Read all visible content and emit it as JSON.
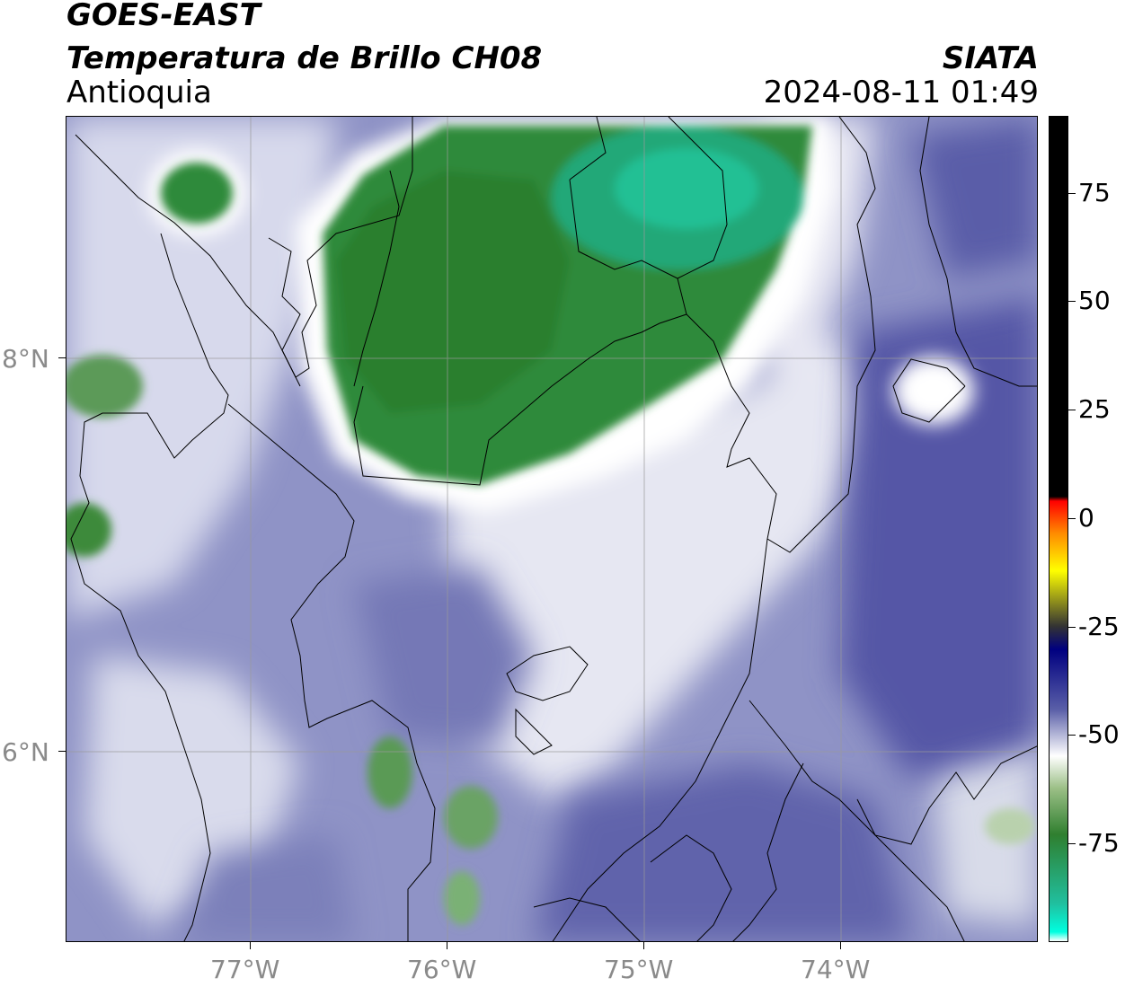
{
  "header": {
    "satellite": "GOES-EAST",
    "product": "Temperatura de Brillo CH08",
    "region": "Antioquia",
    "agency": "SIATA",
    "datetime": "2024-08-11 01:49"
  },
  "map": {
    "lon_labels": [
      "77°W",
      "76°W",
      "75°W",
      "74°W"
    ],
    "lat_labels": [
      "8°N",
      "6°N"
    ]
  },
  "colorbar": {
    "ticks": [
      "75",
      "50",
      "25",
      "0",
      "-25",
      "-50",
      "-75"
    ],
    "stops": [
      {
        "value": 90,
        "color": "#000000"
      },
      {
        "value": 8,
        "color": "#000000"
      },
      {
        "value": 7,
        "color": "#ff0000"
      },
      {
        "value": 0,
        "color": "#ff8c00"
      },
      {
        "value": -8,
        "color": "#ffff00"
      },
      {
        "value": -20,
        "color": "#333333"
      },
      {
        "value": -25,
        "color": "#000080"
      },
      {
        "value": -38,
        "color": "#5a5fa8"
      },
      {
        "value": -48,
        "color": "#ffffff"
      },
      {
        "value": -55,
        "color": "#9bbf86"
      },
      {
        "value": -65,
        "color": "#2f7f2f"
      },
      {
        "value": -80,
        "color": "#20c0a0"
      },
      {
        "value": -86,
        "color": "#00ffe0"
      },
      {
        "value": -88,
        "color": "#ffffff"
      }
    ]
  },
  "colors": {
    "cold_cloud_green": "#2f8a3a",
    "coldest_teal": "#20c0a0",
    "clear_blue": "#5a5fa8",
    "mid_white": "#f4f4f8"
  }
}
